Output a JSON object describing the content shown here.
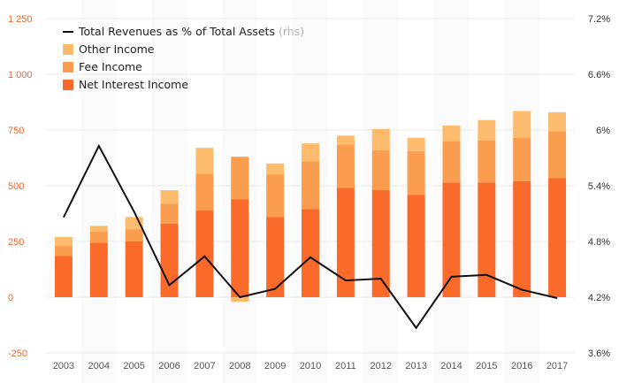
{
  "chart_data": {
    "type": "bar",
    "stacked": true,
    "categories": [
      "2003",
      "2004",
      "2005",
      "2006",
      "2007",
      "2008",
      "2009",
      "2010",
      "2011",
      "2012",
      "2013",
      "2014",
      "2015",
      "2016",
      "2017"
    ],
    "series": [
      {
        "name": "Net Interest Income",
        "color": "#f96a2b",
        "values": [
          185,
          245,
          250,
          330,
          390,
          440,
          360,
          395,
          490,
          480,
          460,
          515,
          515,
          520,
          535
        ]
      },
      {
        "name": "Fee Income",
        "color": "#fb9d4f",
        "values": [
          45,
          50,
          55,
          90,
          165,
          190,
          190,
          215,
          195,
          180,
          195,
          185,
          190,
          195,
          210
        ]
      },
      {
        "name": "Other Income",
        "color": "#fdbb6d",
        "values": [
          40,
          25,
          55,
          60,
          115,
          -20,
          50,
          80,
          40,
          95,
          60,
          70,
          90,
          120,
          85
        ]
      }
    ],
    "line_series": {
      "name": "Total Revenues as % of Total Assets",
      "suffix": "(rhs)",
      "color": "#111111",
      "values": [
        5.06,
        5.83,
        5.12,
        4.33,
        4.64,
        4.2,
        4.29,
        4.63,
        4.38,
        4.4,
        3.87,
        4.42,
        4.44,
        4.28,
        4.19
      ]
    },
    "y_left": {
      "min": -250,
      "max": 1250,
      "ticks": [
        -250,
        0,
        250,
        500,
        750,
        1000,
        1250
      ],
      "tick_labels": [
        "-250",
        "0",
        "250",
        "500",
        "750",
        "1 000",
        "1 250"
      ]
    },
    "y_right": {
      "min": 3.6,
      "max": 7.2,
      "ticks": [
        3.6,
        4.2,
        4.8,
        5.4,
        6.0,
        6.6,
        7.2
      ],
      "tick_labels": [
        "3.6%",
        "4.2%",
        "4.8%",
        "5.4%",
        "6%",
        "6.6%",
        "7.2%"
      ]
    },
    "legend_position": "top-left",
    "grid": true
  },
  "colors": {
    "left_axis": "#f0652b",
    "grid": "#e8e8e8",
    "band": "#fafafa"
  }
}
